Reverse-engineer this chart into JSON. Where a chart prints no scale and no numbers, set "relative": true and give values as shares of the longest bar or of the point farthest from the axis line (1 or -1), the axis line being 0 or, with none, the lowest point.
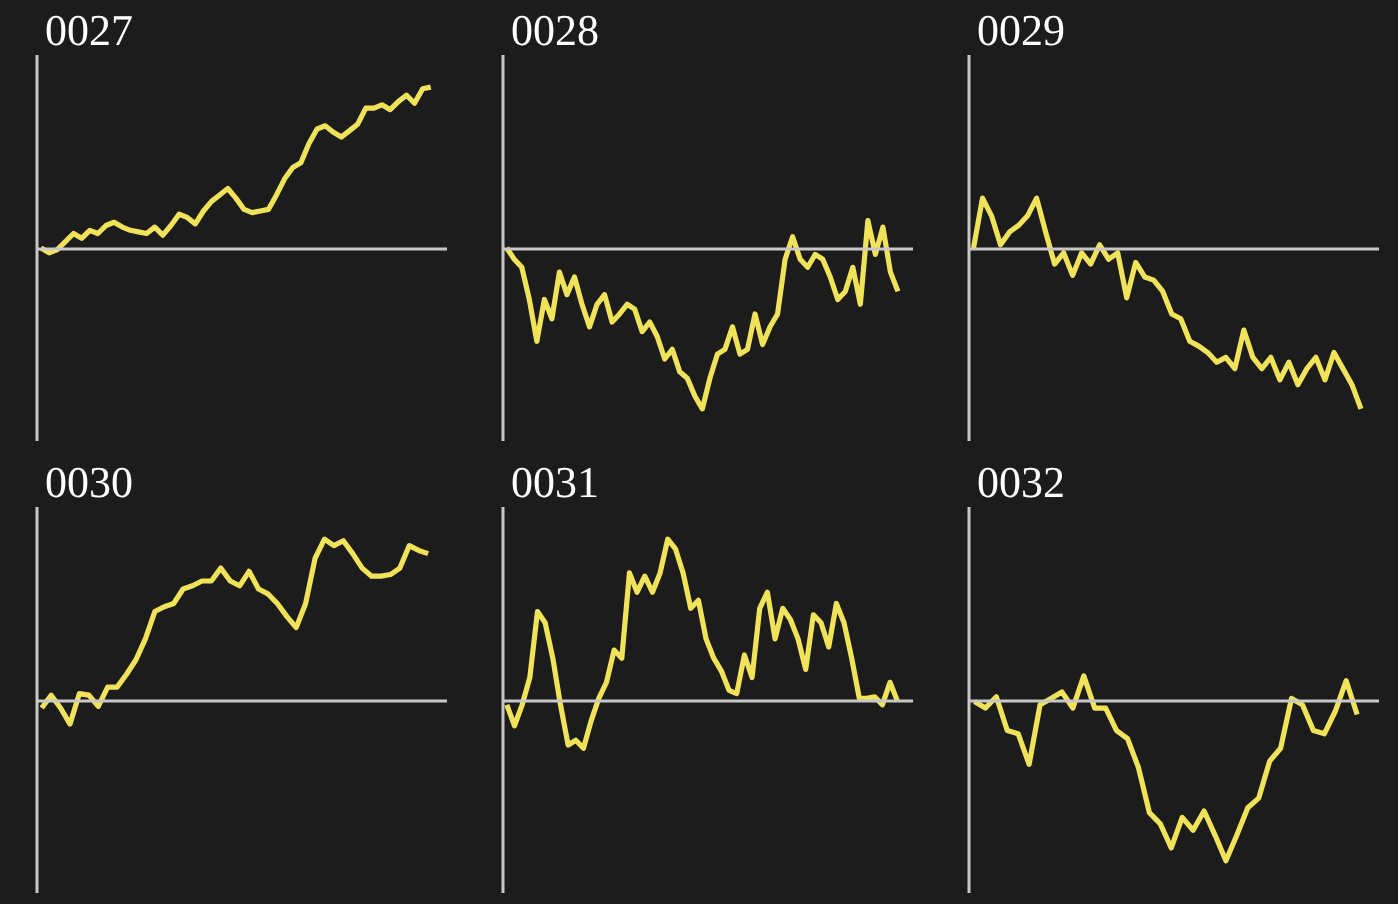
{
  "chart_data": [
    {
      "type": "line",
      "title": "0027",
      "relative": true,
      "line_style": "solid",
      "categories": [
        null,
        null,
        null,
        null,
        null,
        null,
        null,
        null,
        null,
        null,
        null,
        null,
        null,
        null,
        null,
        null,
        null,
        null,
        null,
        null,
        null,
        null,
        null,
        null,
        null,
        null,
        null,
        null,
        null,
        null,
        null,
        null,
        null,
        null,
        null,
        null,
        null,
        null,
        null,
        null,
        null,
        null,
        null,
        null,
        null,
        null,
        null,
        null,
        null
      ],
      "series": [
        {
          "color": "#f0e35a",
          "values": [
            0,
            -0.03,
            -0.01,
            0.04,
            0.09,
            0.06,
            0.11,
            0.09,
            0.14,
            0.16,
            0.13,
            0.11,
            0.1,
            0.09,
            0.13,
            0.08,
            0.14,
            0.21,
            0.19,
            0.15,
            0.23,
            0.29,
            0.33,
            0.37,
            0.31,
            0.24,
            0.22,
            0.23,
            0.24,
            0.33,
            0.43,
            0.5,
            0.53,
            0.65,
            0.74,
            0.76,
            0.72,
            0.69,
            0.73,
            0.77,
            0.87,
            0.87,
            0.89,
            0.86,
            0.91,
            0.95,
            0.9,
            0.99,
            1
          ]
        }
      ]
    },
    {
      "type": "line",
      "title": "0028",
      "relative": true,
      "line_style": "solid",
      "categories": [
        null,
        null,
        null,
        null,
        null,
        null,
        null,
        null,
        null,
        null,
        null,
        null,
        null,
        null,
        null,
        null,
        null,
        null,
        null,
        null,
        null,
        null,
        null,
        null,
        null,
        null,
        null,
        null,
        null,
        null,
        null,
        null,
        null,
        null,
        null,
        null,
        null,
        null,
        null,
        null,
        null,
        null,
        null,
        null,
        null,
        null,
        null,
        null,
        null,
        null,
        null,
        null,
        null
      ],
      "series": [
        {
          "color": "#f0e35a",
          "values": [
            0,
            -0.07,
            -0.12,
            -0.32,
            -0.58,
            -0.32,
            -0.44,
            -0.15,
            -0.29,
            -0.18,
            -0.35,
            -0.49,
            -0.35,
            -0.29,
            -0.46,
            -0.41,
            -0.35,
            -0.38,
            -0.52,
            -0.46,
            -0.55,
            -0.69,
            -0.63,
            -0.77,
            -0.81,
            -0.92,
            -1,
            -0.81,
            -0.66,
            -0.63,
            -0.49,
            -0.66,
            -0.63,
            -0.41,
            -0.6,
            -0.49,
            -0.41,
            -0.07,
            0.07,
            -0.07,
            -0.12,
            -0.04,
            -0.07,
            -0.18,
            -0.32,
            -0.27,
            -0.12,
            -0.35,
            0.17,
            -0.04,
            0.13,
            -0.15,
            -0.27
          ]
        }
      ]
    },
    {
      "type": "line",
      "title": "0029",
      "relative": true,
      "line_style": "solid",
      "categories": [
        null,
        null,
        null,
        null,
        null,
        null,
        null,
        null,
        null,
        null,
        null,
        null,
        null,
        null,
        null,
        null,
        null,
        null,
        null,
        null,
        null,
        null,
        null,
        null,
        null,
        null,
        null,
        null,
        null,
        null,
        null,
        null,
        null,
        null,
        null,
        null,
        null,
        null,
        null,
        null,
        null,
        null,
        null,
        null
      ],
      "series": [
        {
          "color": "#f0e35a",
          "values": [
            0,
            0.31,
            0.2,
            0.02,
            0.1,
            0.14,
            0.2,
            0.31,
            0.1,
            -0.1,
            -0.03,
            -0.17,
            -0.03,
            -0.1,
            0.02,
            -0.07,
            -0.03,
            -0.31,
            -0.09,
            -0.18,
            -0.2,
            -0.27,
            -0.41,
            -0.44,
            -0.58,
            -0.61,
            -0.65,
            -0.71,
            -0.68,
            -0.75,
            -0.51,
            -0.68,
            -0.75,
            -0.68,
            -0.82,
            -0.71,
            -0.85,
            -0.75,
            -0.68,
            -0.82,
            -0.65,
            -0.75,
            -0.85,
            -1
          ]
        }
      ]
    },
    {
      "type": "line",
      "title": "0030",
      "relative": true,
      "line_style": "solid",
      "categories": [
        null,
        null,
        null,
        null,
        null,
        null,
        null,
        null,
        null,
        null,
        null,
        null,
        null,
        null,
        null,
        null,
        null,
        null,
        null,
        null,
        null,
        null,
        null,
        null,
        null,
        null,
        null,
        null,
        null,
        null,
        null,
        null,
        null,
        null,
        null,
        null,
        null,
        null,
        null,
        null,
        null,
        null
      ],
      "series": [
        {
          "color": "#f0e35a",
          "values": [
            -0.05,
            0.03,
            -0.05,
            -0.15,
            0.04,
            0.03,
            -0.04,
            0.08,
            0.08,
            0.16,
            0.25,
            0.38,
            0.55,
            0.58,
            0.6,
            0.69,
            0.71,
            0.74,
            0.74,
            0.82,
            0.74,
            0.71,
            0.8,
            0.69,
            0.66,
            0.6,
            0.52,
            0.45,
            0.6,
            0.88,
            1,
            0.96,
            0.99,
            0.91,
            0.82,
            0.77,
            0.77,
            0.78,
            0.82,
            0.96,
            0.93,
            0.91
          ]
        }
      ]
    },
    {
      "type": "line",
      "title": "0031",
      "relative": true,
      "line_style": "solid",
      "categories": [
        null,
        null,
        null,
        null,
        null,
        null,
        null,
        null,
        null,
        null,
        null,
        null,
        null,
        null,
        null,
        null,
        null,
        null,
        null,
        null,
        null,
        null,
        null,
        null,
        null,
        null,
        null,
        null,
        null,
        null,
        null,
        null,
        null,
        null,
        null,
        null,
        null,
        null,
        null,
        null,
        null,
        null,
        null,
        null,
        null,
        null,
        null,
        null,
        null,
        null,
        null,
        null
      ],
      "series": [
        {
          "color": "#f0e35a",
          "values": [
            -0.03,
            -0.16,
            -0.03,
            0.14,
            0.55,
            0.48,
            0.26,
            -0.03,
            -0.28,
            -0.25,
            -0.3,
            -0.13,
            0.01,
            0.11,
            0.31,
            0.26,
            0.79,
            0.67,
            0.77,
            0.67,
            0.79,
            1,
            0.94,
            0.79,
            0.57,
            0.62,
            0.38,
            0.26,
            0.18,
            0.06,
            0.04,
            0.28,
            0.14,
            0.57,
            0.67,
            0.38,
            0.57,
            0.5,
            0.38,
            0.19,
            0.53,
            0.48,
            0.33,
            0.6,
            0.48,
            0.26,
            0.01,
            0.01,
            0.02,
            -0.03,
            0.11,
            -0.01
          ]
        }
      ]
    },
    {
      "type": "line",
      "title": "0032",
      "relative": true,
      "line_style": "solid",
      "categories": [
        null,
        null,
        null,
        null,
        null,
        null,
        null,
        null,
        null,
        null,
        null,
        null,
        null,
        null,
        null,
        null,
        null,
        null,
        null,
        null,
        null,
        null,
        null,
        null,
        null,
        null,
        null,
        null,
        null,
        null,
        null,
        null,
        null,
        null,
        null,
        null
      ],
      "series": [
        {
          "color": "#f0e35a",
          "values": [
            -0.01,
            -0.05,
            0.02,
            -0.19,
            -0.21,
            -0.4,
            -0.03,
            0.01,
            0.05,
            -0.05,
            0.15,
            -0.05,
            -0.05,
            -0.19,
            -0.24,
            -0.42,
            -0.7,
            -0.77,
            -0.92,
            -0.73,
            -0.81,
            -0.69,
            -0.84,
            -1,
            -0.84,
            -0.67,
            -0.61,
            -0.38,
            -0.3,
            0.01,
            -0.03,
            -0.19,
            -0.21,
            -0.07,
            0.12,
            -0.09
          ]
        }
      ]
    }
  ]
}
